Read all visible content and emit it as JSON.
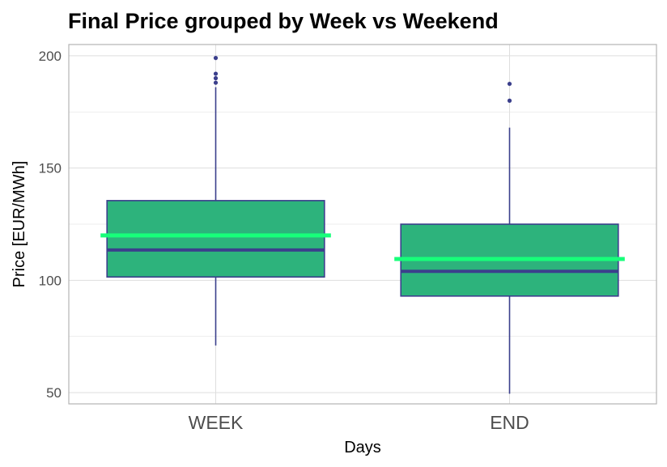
{
  "chart_data": {
    "type": "boxplot",
    "title": "Final Price grouped by Week vs Weekend",
    "xlabel": "Days",
    "ylabel": "Price [EUR/MWh]",
    "categories": [
      "WEEK",
      "END"
    ],
    "yticks": [
      50,
      100,
      150,
      200
    ],
    "ylim": [
      45,
      205
    ],
    "grid": true,
    "boxes": [
      {
        "category": "WEEK",
        "whisker_low": 71,
        "q1": 101.5,
        "median": 113.5,
        "q3": 135.5,
        "whisker_high": 186,
        "mean": 120,
        "outliers": [
          188,
          190,
          192,
          199
        ]
      },
      {
        "category": "END",
        "whisker_low": 49.5,
        "q1": 93,
        "median": 104,
        "q3": 125,
        "whisker_high": 168,
        "mean": 109.5,
        "outliers": [
          180,
          187.5
        ]
      }
    ],
    "colors": {
      "box_fill": "#2db37c",
      "box_line": "#3b3f8c",
      "mean_line": "#17ff7a",
      "grid": "#dedede",
      "panel_border": "#b3b3b3"
    }
  }
}
